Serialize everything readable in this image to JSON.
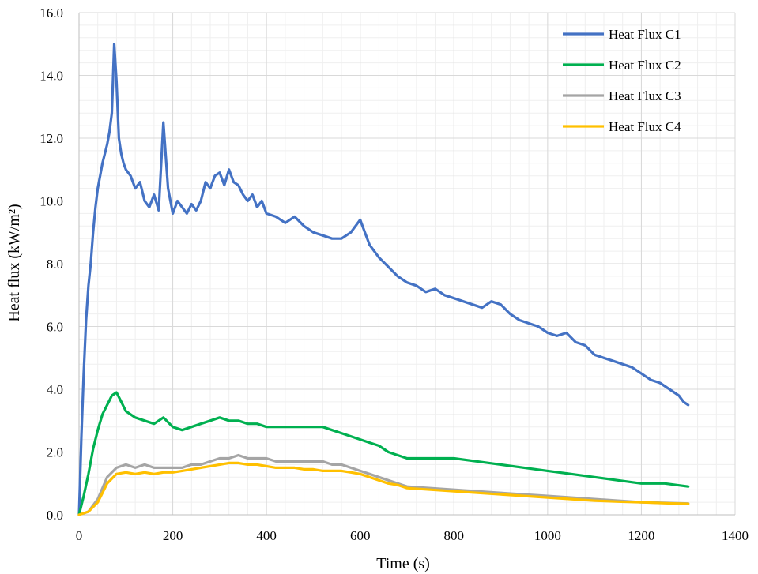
{
  "chart_data": {
    "type": "line",
    "xlabel": "Time (s)",
    "ylabel": "Heat flux (kW/m²)",
    "xlim": [
      0,
      1400
    ],
    "ylim": [
      0,
      16
    ],
    "x_ticks": [
      0,
      200,
      400,
      600,
      800,
      1000,
      1200,
      1400
    ],
    "y_ticks": [
      "0.0",
      "2.0",
      "4.0",
      "6.0",
      "8.0",
      "10.0",
      "12.0",
      "14.0",
      "16.0"
    ],
    "grid": "major and minor",
    "legend": "top-right",
    "series": [
      {
        "name": "Heat Flux C1",
        "color": "#4472c4",
        "x": [
          0,
          5,
          10,
          15,
          20,
          25,
          30,
          35,
          40,
          45,
          50,
          55,
          60,
          65,
          70,
          75,
          80,
          85,
          90,
          95,
          100,
          110,
          120,
          130,
          140,
          150,
          160,
          170,
          180,
          190,
          200,
          210,
          220,
          230,
          240,
          250,
          260,
          270,
          280,
          290,
          300,
          310,
          320,
          330,
          340,
          350,
          360,
          370,
          380,
          390,
          400,
          420,
          440,
          460,
          480,
          500,
          520,
          540,
          560,
          580,
          600,
          610,
          620,
          640,
          660,
          680,
          700,
          720,
          740,
          760,
          780,
          800,
          820,
          840,
          860,
          880,
          900,
          920,
          940,
          960,
          980,
          1000,
          1020,
          1040,
          1060,
          1080,
          1100,
          1120,
          1140,
          1160,
          1180,
          1200,
          1220,
          1240,
          1260,
          1280,
          1290,
          1300
        ],
        "values": [
          0,
          2.5,
          4.5,
          6.2,
          7.3,
          8.0,
          9.0,
          9.8,
          10.4,
          10.8,
          11.2,
          11.5,
          11.8,
          12.2,
          12.8,
          15.0,
          13.8,
          12.0,
          11.5,
          11.2,
          11.0,
          10.8,
          10.4,
          10.6,
          10.0,
          9.8,
          10.2,
          9.7,
          12.5,
          10.4,
          9.6,
          10.0,
          9.8,
          9.6,
          9.9,
          9.7,
          10.0,
          10.6,
          10.4,
          10.8,
          10.9,
          10.5,
          11.0,
          10.6,
          10.5,
          10.2,
          10.0,
          10.2,
          9.8,
          10.0,
          9.6,
          9.5,
          9.3,
          9.5,
          9.2,
          9.0,
          8.9,
          8.8,
          8.8,
          9.0,
          9.4,
          9.0,
          8.6,
          8.2,
          7.9,
          7.6,
          7.4,
          7.3,
          7.1,
          7.2,
          7.0,
          6.9,
          6.8,
          6.7,
          6.6,
          6.8,
          6.7,
          6.4,
          6.2,
          6.1,
          6.0,
          5.8,
          5.7,
          5.8,
          5.5,
          5.4,
          5.1,
          5.0,
          4.9,
          4.8,
          4.7,
          4.5,
          4.3,
          4.2,
          4.0,
          3.8,
          3.6,
          3.5
        ]
      },
      {
        "name": "Heat Flux C2",
        "color": "#00b050",
        "x": [
          0,
          10,
          20,
          30,
          40,
          50,
          60,
          70,
          80,
          90,
          100,
          120,
          140,
          160,
          180,
          200,
          220,
          240,
          260,
          280,
          300,
          320,
          340,
          360,
          380,
          400,
          420,
          440,
          460,
          480,
          500,
          520,
          540,
          560,
          580,
          600,
          620,
          640,
          660,
          680,
          700,
          720,
          740,
          760,
          780,
          800,
          850,
          900,
          950,
          1000,
          1050,
          1100,
          1150,
          1200,
          1250,
          1300
        ],
        "values": [
          0,
          0.6,
          1.3,
          2.1,
          2.7,
          3.2,
          3.5,
          3.8,
          3.9,
          3.6,
          3.3,
          3.1,
          3.0,
          2.9,
          3.1,
          2.8,
          2.7,
          2.8,
          2.9,
          3.0,
          3.1,
          3.0,
          3.0,
          2.9,
          2.9,
          2.8,
          2.8,
          2.8,
          2.8,
          2.8,
          2.8,
          2.8,
          2.7,
          2.6,
          2.5,
          2.4,
          2.3,
          2.2,
          2.0,
          1.9,
          1.8,
          1.8,
          1.8,
          1.8,
          1.8,
          1.8,
          1.7,
          1.6,
          1.5,
          1.4,
          1.3,
          1.2,
          1.1,
          1.0,
          1.0,
          0.9
        ]
      },
      {
        "name": "Heat Flux C3",
        "color": "#a5a5a5",
        "x": [
          0,
          20,
          40,
          60,
          80,
          100,
          120,
          140,
          160,
          180,
          200,
          220,
          240,
          260,
          280,
          300,
          320,
          340,
          360,
          380,
          400,
          420,
          440,
          460,
          480,
          500,
          520,
          540,
          560,
          580,
          600,
          620,
          640,
          660,
          680,
          700,
          750,
          800,
          850,
          900,
          950,
          1000,
          1050,
          1100,
          1150,
          1200,
          1250,
          1300
        ],
        "values": [
          0,
          0.1,
          0.5,
          1.2,
          1.5,
          1.6,
          1.5,
          1.6,
          1.5,
          1.5,
          1.5,
          1.5,
          1.6,
          1.6,
          1.7,
          1.8,
          1.8,
          1.9,
          1.8,
          1.8,
          1.8,
          1.7,
          1.7,
          1.7,
          1.7,
          1.7,
          1.7,
          1.6,
          1.6,
          1.5,
          1.4,
          1.3,
          1.2,
          1.1,
          1.0,
          0.9,
          0.85,
          0.8,
          0.75,
          0.7,
          0.65,
          0.6,
          0.55,
          0.5,
          0.45,
          0.4,
          0.38,
          0.36
        ]
      },
      {
        "name": "Heat Flux C4",
        "color": "#ffc000",
        "x": [
          0,
          20,
          40,
          60,
          80,
          100,
          120,
          140,
          160,
          180,
          200,
          220,
          240,
          260,
          280,
          300,
          320,
          340,
          360,
          380,
          400,
          420,
          440,
          460,
          480,
          500,
          520,
          540,
          560,
          580,
          600,
          620,
          640,
          660,
          680,
          700,
          750,
          800,
          850,
          900,
          950,
          1000,
          1050,
          1100,
          1150,
          1200,
          1250,
          1300
        ],
        "values": [
          0,
          0.1,
          0.4,
          1.0,
          1.3,
          1.35,
          1.3,
          1.35,
          1.3,
          1.35,
          1.35,
          1.4,
          1.45,
          1.5,
          1.55,
          1.6,
          1.65,
          1.65,
          1.6,
          1.6,
          1.55,
          1.5,
          1.5,
          1.5,
          1.45,
          1.45,
          1.4,
          1.4,
          1.4,
          1.35,
          1.3,
          1.2,
          1.1,
          1.0,
          0.95,
          0.85,
          0.8,
          0.75,
          0.7,
          0.65,
          0.6,
          0.55,
          0.5,
          0.45,
          0.42,
          0.4,
          0.37,
          0.35
        ]
      }
    ]
  }
}
